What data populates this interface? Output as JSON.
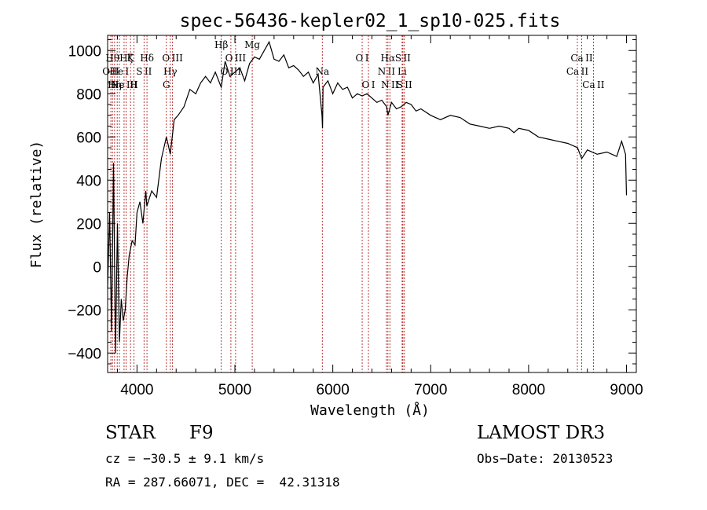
{
  "chart_data": {
    "type": "line",
    "title": "spec-56436-kepler02_1_sp10-025.fits",
    "xlabel": "Wavelength (Å)",
    "ylabel": "Flux (relative)",
    "xlim": [
      3700,
      9100
    ],
    "ylim": [
      -490,
      1070
    ],
    "xticks": [
      4000,
      5000,
      6000,
      7000,
      8000,
      9000
    ],
    "yticks": [
      -400,
      -200,
      0,
      200,
      400,
      600,
      800,
      1000
    ],
    "xtick_labels": [
      "4000",
      "5000",
      "6000",
      "7000",
      "8000",
      "9000"
    ],
    "ytick_labels": [
      "−400",
      "−200",
      "0",
      "200",
      "400",
      "600",
      "800",
      "1000"
    ],
    "series": [
      {
        "name": "flux",
        "x": [
          3700,
          3720,
          3740,
          3760,
          3780,
          3800,
          3820,
          3840,
          3860,
          3880,
          3900,
          3920,
          3950,
          3980,
          4000,
          4030,
          4060,
          4090,
          4100,
          4150,
          4200,
          4250,
          4300,
          4340,
          4380,
          4420,
          4480,
          4540,
          4600,
          4650,
          4700,
          4750,
          4800,
          4860,
          4900,
          4950,
          5000,
          5050,
          5100,
          5150,
          5200,
          5250,
          5300,
          5350,
          5400,
          5450,
          5500,
          5550,
          5600,
          5650,
          5700,
          5750,
          5800,
          5850,
          5890,
          5895,
          5900,
          5950,
          6000,
          6050,
          6100,
          6150,
          6200,
          6250,
          6300,
          6350,
          6400,
          6450,
          6500,
          6550,
          6563,
          6600,
          6650,
          6700,
          6750,
          6800,
          6850,
          6900,
          7000,
          7100,
          7200,
          7300,
          7400,
          7500,
          7600,
          7700,
          7800,
          7850,
          7900,
          8000,
          8100,
          8200,
          8300,
          8400,
          8500,
          8542,
          8600,
          8700,
          8800,
          8900,
          8950,
          8990,
          9000
        ],
        "y": [
          -100,
          250,
          -300,
          480,
          -400,
          200,
          -350,
          -150,
          -250,
          -200,
          -50,
          50,
          120,
          100,
          250,
          300,
          200,
          350,
          280,
          350,
          320,
          500,
          600,
          520,
          680,
          700,
          740,
          820,
          800,
          850,
          880,
          850,
          900,
          830,
          950,
          880,
          900,
          920,
          860,
          940,
          970,
          960,
          1000,
          1040,
          960,
          950,
          980,
          920,
          930,
          910,
          880,
          900,
          850,
          890,
          700,
          640,
          830,
          860,
          800,
          850,
          820,
          830,
          780,
          800,
          790,
          800,
          780,
          760,
          770,
          740,
          700,
          760,
          730,
          740,
          760,
          750,
          720,
          730,
          700,
          680,
          700,
          690,
          660,
          650,
          640,
          650,
          640,
          620,
          640,
          630,
          600,
          590,
          580,
          570,
          550,
          500,
          540,
          520,
          530,
          510,
          580,
          520,
          330
        ]
      }
    ],
    "lines": [
      {
        "wl": 3733,
        "labels": [
          "O II"
        ],
        "tier": 2
      },
      {
        "wl": 3750,
        "labels": [
          "Hθ"
        ],
        "tier": 1
      },
      {
        "wl": 3771,
        "labels": [
          "Hη"
        ],
        "tier": 3
      },
      {
        "wl": 3798,
        "labels": [
          "Hε"
        ],
        "tier": 3
      },
      {
        "wl": 3820,
        "labels": [
          "He I"
        ],
        "tier": 2
      },
      {
        "wl": 3868,
        "labels": [
          "Ne III"
        ],
        "tier": 3
      },
      {
        "wl": 3889,
        "labels": [
          "Hζ"
        ],
        "tier": 1
      },
      {
        "wl": 3934,
        "labels": [
          "K"
        ],
        "tier": 1
      },
      {
        "wl": 3969,
        "labels": [
          "H"
        ],
        "tier": 3
      },
      {
        "wl": 4072,
        "labels": [
          "S II"
        ],
        "tier": 2
      },
      {
        "wl": 4102,
        "labels": [
          "Hδ"
        ],
        "tier": 1
      },
      {
        "wl": 4300,
        "labels": [
          "G"
        ],
        "tier": 3
      },
      {
        "wl": 4340,
        "labels": [
          "Hγ"
        ],
        "tier": 2
      },
      {
        "wl": 4363,
        "labels": [
          "O III"
        ],
        "tier": 1
      },
      {
        "wl": 4861,
        "labels": [
          "Hβ"
        ],
        "tier": 0
      },
      {
        "wl": 4959,
        "labels": [
          "O III"
        ],
        "tier": 2
      },
      {
        "wl": 5007,
        "labels": [
          "O III"
        ],
        "tier": 1
      },
      {
        "wl": 5177,
        "labels": [
          "Mg"
        ],
        "tier": 0
      },
      {
        "wl": 5893,
        "labels": [
          "Na"
        ],
        "tier": 2
      },
      {
        "wl": 6300,
        "labels": [
          "O I"
        ],
        "tier": 1
      },
      {
        "wl": 6364,
        "labels": [
          "O I"
        ],
        "tier": 3
      },
      {
        "wl": 6548,
        "labels": [
          "N II"
        ],
        "tier": 2
      },
      {
        "wl": 6563,
        "labels": [
          "Hα"
        ],
        "tier": 1
      },
      {
        "wl": 6583,
        "labels": [
          "N II"
        ],
        "tier": 3
      },
      {
        "wl": 6708,
        "labels": [
          "Li"
        ],
        "tier": 2
      },
      {
        "wl": 6716,
        "labels": [
          "S II"
        ],
        "tier": 1
      },
      {
        "wl": 6731,
        "labels": [
          "S II"
        ],
        "tier": 3
      },
      {
        "wl": 8498,
        "labels": [
          "Ca II"
        ],
        "tier": 2
      },
      {
        "wl": 8542,
        "labels": [
          "Ca II"
        ],
        "tier": 1
      },
      {
        "wl": 8662,
        "labels": [
          "Ca II"
        ],
        "tier": 3
      }
    ]
  },
  "info": {
    "obj_class": "STAR",
    "subclass": "F9",
    "survey": "LAMOST DR3",
    "cz": "cz = −30.5 ± 9.1 km/s",
    "obs_date": "Obs−Date: 20130523",
    "radec": "RA = 287.66071, DEC =  42.31318"
  },
  "colors": {
    "axis": "#000000",
    "line_marker": "#b22222",
    "spectrum": "#000000"
  }
}
